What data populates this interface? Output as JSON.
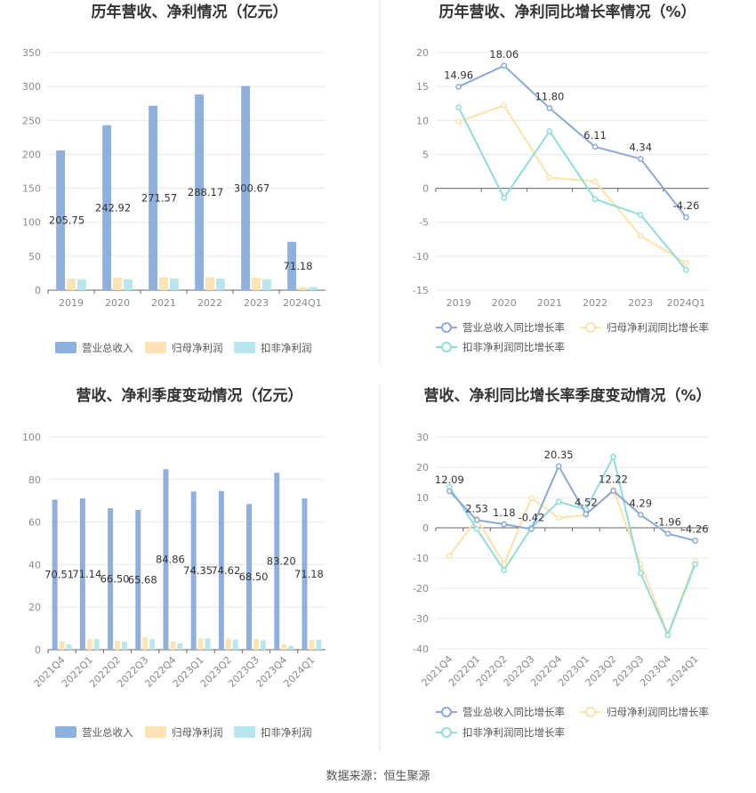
{
  "footer": "数据来源：恒生聚源",
  "colors": {
    "revenue": "#8fb0dc",
    "parent_net": "#fce3b4",
    "deducted_net": "#b8e6ec",
    "line_revenue": "#8aa9d8",
    "line_parent": "#fde2a6",
    "line_deducted": "#8fdcdc"
  },
  "chart_data": [
    {
      "type": "bar",
      "title": "历年营收、净利情况（亿元）",
      "categories": [
        "2019",
        "2020",
        "2021",
        "2022",
        "2023",
        "2024Q1"
      ],
      "ylim": [
        0,
        350
      ],
      "yticks": [
        0,
        50,
        100,
        150,
        200,
        250,
        300,
        350
      ],
      "grid": true,
      "legend": "bottom",
      "series": [
        {
          "name": "营业总收入",
          "values": [
            205.75,
            242.92,
            271.57,
            288.17,
            300.67,
            71.18
          ],
          "labels": [
            "205.75",
            "242.92",
            "271.57",
            "288.17",
            "300.67",
            "71.18"
          ]
        },
        {
          "name": "归母净利润",
          "values": [
            17,
            18.5,
            19,
            19,
            18,
            4.5
          ]
        },
        {
          "name": "扣非净利润",
          "values": [
            16,
            16,
            17,
            17,
            16,
            4.5
          ]
        }
      ]
    },
    {
      "type": "line",
      "title": "历年营收、净利同比增长率情况（%）",
      "categories": [
        "2019",
        "2020",
        "2021",
        "2022",
        "2023",
        "2024Q1"
      ],
      "ylim": [
        -15,
        20
      ],
      "yticks": [
        -15,
        -10,
        -5,
        0,
        5,
        10,
        15,
        20
      ],
      "grid": true,
      "legend": "bottom",
      "series": [
        {
          "name": "营业总收入同比增长率",
          "values": [
            14.96,
            18.06,
            11.8,
            6.11,
            4.34,
            -4.26
          ],
          "labels": [
            "14.96",
            "18.06",
            "11.80",
            "6.11",
            "4.34",
            "-4.26"
          ]
        },
        {
          "name": "归母净利润同比增长率",
          "values": [
            9.8,
            12.2,
            1.6,
            1.0,
            -7.0,
            -11.0
          ]
        },
        {
          "name": "扣非净利润同比增长率",
          "values": [
            11.9,
            -1.4,
            8.4,
            -1.6,
            -3.9,
            -12.0
          ]
        }
      ]
    },
    {
      "type": "bar",
      "title": "营收、净利季度变动情况（亿元）",
      "categories": [
        "2021Q4",
        "2022Q1",
        "2022Q2",
        "2022Q3",
        "2022Q4",
        "2023Q1",
        "2023Q2",
        "2023Q3",
        "2023Q4",
        "2024Q1"
      ],
      "ylim": [
        0,
        100
      ],
      "yticks": [
        0,
        20,
        40,
        60,
        80,
        100
      ],
      "grid": true,
      "legend": "bottom",
      "series": [
        {
          "name": "营业总收入",
          "values": [
            70.51,
            71.14,
            66.5,
            65.68,
            84.86,
            74.35,
            74.62,
            68.5,
            83.2,
            71.18
          ],
          "labels": [
            "70.51",
            "71.14",
            "66.50",
            "65.68",
            "84.86",
            "74.35",
            "74.62",
            "68.50",
            "83.20",
            "71.18"
          ]
        },
        {
          "name": "归母净利润",
          "values": [
            3.8,
            5.0,
            4.3,
            5.8,
            4.0,
            5.3,
            5.0,
            5.0,
            2.7,
            4.6
          ]
        },
        {
          "name": "扣非净利润",
          "values": [
            2.5,
            5.0,
            3.8,
            5.0,
            3.0,
            5.3,
            4.7,
            4.4,
            1.8,
            4.6
          ]
        }
      ]
    },
    {
      "type": "line",
      "title": "营收、净利同比增长率季度变动情况（%）",
      "categories": [
        "2021Q4",
        "2022Q1",
        "2022Q2",
        "2022Q3",
        "2022Q4",
        "2023Q1",
        "2023Q2",
        "2023Q3",
        "2023Q4",
        "2024Q1"
      ],
      "ylim": [
        -40,
        30
      ],
      "yticks": [
        -40,
        -30,
        -20,
        -10,
        0,
        10,
        20,
        30
      ],
      "grid": true,
      "legend": "bottom",
      "series": [
        {
          "name": "营业总收入同比增长率",
          "values": [
            12.09,
            2.53,
            1.18,
            -0.42,
            20.35,
            4.52,
            12.22,
            4.29,
            -1.96,
            -4.26
          ],
          "labels": [
            "12.09",
            "2.53",
            "1.18",
            "-0.42",
            "20.35",
            "4.52",
            "12.22",
            "4.29",
            "-1.96",
            "-4.26"
          ]
        },
        {
          "name": "归母净利润同比增长率",
          "values": [
            -9.3,
            3.0,
            -12.0,
            9.8,
            3.3,
            4.2,
            12.7,
            -12.0,
            -35.0,
            -11.0
          ]
        },
        {
          "name": "扣非净利润同比增长率",
          "values": [
            13.5,
            -0.4,
            -14.0,
            0.0,
            8.6,
            6.0,
            23.5,
            -15.0,
            -35.5,
            -12.0
          ]
        }
      ]
    }
  ]
}
